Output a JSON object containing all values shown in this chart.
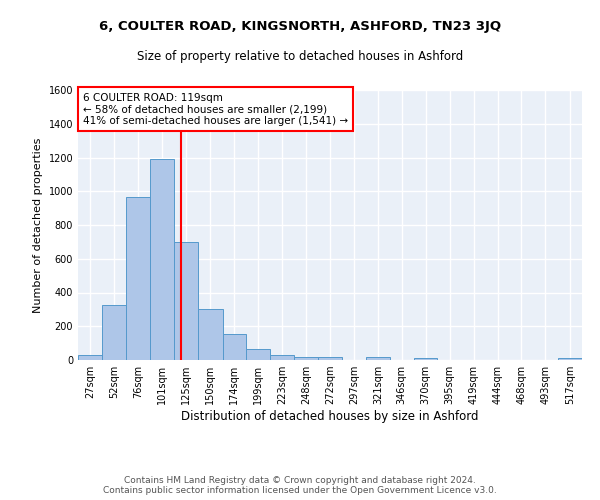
{
  "title1": "6, COULTER ROAD, KINGSNORTH, ASHFORD, TN23 3JQ",
  "title2": "Size of property relative to detached houses in Ashford",
  "xlabel": "Distribution of detached houses by size in Ashford",
  "ylabel": "Number of detached properties",
  "footer1": "Contains HM Land Registry data © Crown copyright and database right 2024.",
  "footer2": "Contains public sector information licensed under the Open Government Licence v3.0.",
  "annotation_line1": "6 COULTER ROAD: 119sqm",
  "annotation_line2": "← 58% of detached houses are smaller (2,199)",
  "annotation_line3": "41% of semi-detached houses are larger (1,541) →",
  "bar_color": "#aec6e8",
  "bar_edge_color": "#5599cc",
  "vline_color": "red",
  "vline_x": 119,
  "categories": [
    "27sqm",
    "52sqm",
    "76sqm",
    "101sqm",
    "125sqm",
    "150sqm",
    "174sqm",
    "199sqm",
    "223sqm",
    "248sqm",
    "272sqm",
    "297sqm",
    "321sqm",
    "346sqm",
    "370sqm",
    "395sqm",
    "419sqm",
    "444sqm",
    "468sqm",
    "493sqm",
    "517sqm"
  ],
  "bin_edges": [
    14,
    39,
    63,
    88,
    112,
    137,
    162,
    186,
    211,
    235,
    260,
    284,
    309,
    333,
    358,
    382,
    407,
    431,
    456,
    480,
    505,
    530
  ],
  "values": [
    30,
    325,
    965,
    1190,
    700,
    300,
    155,
    65,
    30,
    20,
    20,
    0,
    15,
    0,
    10,
    0,
    0,
    0,
    0,
    0,
    10
  ],
  "ylim": [
    0,
    1600
  ],
  "yticks": [
    0,
    200,
    400,
    600,
    800,
    1000,
    1200,
    1400,
    1600
  ],
  "bg_color": "#eaf0f8",
  "grid_color": "white",
  "title1_fontsize": 9.5,
  "title2_fontsize": 8.5,
  "xlabel_fontsize": 8.5,
  "ylabel_fontsize": 8,
  "tick_fontsize": 7,
  "annotation_fontsize": 7.5,
  "footer_fontsize": 6.5
}
